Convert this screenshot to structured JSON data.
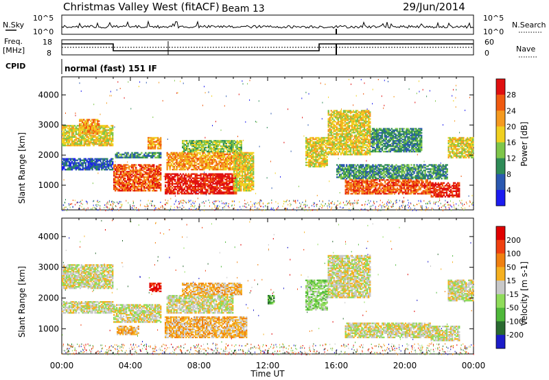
{
  "header": {
    "title": "Christmas Valley West (fitACF)",
    "beam": "Beam 13",
    "date": "29/Jun/2014"
  },
  "nsky_panel": {
    "left_label": "N.Sky",
    "right_label": "N.Search",
    "left_ticks": [
      "10^5",
      "10^0"
    ],
    "right_ticks": [
      "10^5",
      "10^0"
    ]
  },
  "freq_panel": {
    "left_label_1": "Freq.",
    "left_label_2": "[MHz]",
    "right_label": "Nave",
    "left_ticks": [
      "18",
      "8"
    ],
    "right_ticks": [
      "60",
      "0"
    ]
  },
  "cpid": {
    "label": "CPID",
    "value": "normal (fast) 151 IF"
  },
  "chart_data": [
    {
      "type": "heatmap",
      "quantity": "Power",
      "ylabel": "Slant Range [km]",
      "xlabel": "Time UT",
      "y_ticks": [
        1000,
        2000,
        3000,
        4000
      ],
      "ylim": [
        180,
        4600
      ],
      "x_ticks": [
        "00:00",
        "04:00",
        "08:00",
        "12:00",
        "16:00",
        "20:00",
        "00:00"
      ],
      "xlim_hours": [
        0,
        24
      ],
      "colorbar": {
        "label": "Power [dB]",
        "ticks": [
          "4",
          "8",
          "12",
          "16",
          "20",
          "24",
          "28"
        ],
        "colors": [
          "#1c1cf0",
          "#2a58b0",
          "#2e8b57",
          "#7fc64a",
          "#f0d020",
          "#f59a20",
          "#f05a10",
          "#e01010"
        ]
      },
      "bands": [
        {
          "t0": 0.0,
          "t1": 3.0,
          "r0": 2300,
          "r1": 3000,
          "level": 4
        },
        {
          "t0": 1.0,
          "t1": 2.2,
          "r0": 2700,
          "r1": 3200,
          "level": 5
        },
        {
          "t0": 0.0,
          "t1": 3.0,
          "r0": 1500,
          "r1": 1900,
          "level": 1
        },
        {
          "t0": 3.0,
          "t1": 5.8,
          "r0": 800,
          "r1": 1700,
          "level": 6
        },
        {
          "t0": 3.1,
          "t1": 5.8,
          "r0": 1900,
          "r1": 2100,
          "level": 2
        },
        {
          "t0": 5.0,
          "t1": 5.8,
          "r0": 2200,
          "r1": 2600,
          "level": 5
        },
        {
          "t0": 6.0,
          "t1": 10.2,
          "r0": 700,
          "r1": 1400,
          "level": 7
        },
        {
          "t0": 6.1,
          "t1": 10.8,
          "r0": 1500,
          "r1": 2100,
          "level": 5
        },
        {
          "t0": 7.0,
          "t1": 10.5,
          "r0": 2100,
          "r1": 2500,
          "level": 3
        },
        {
          "t0": 10.0,
          "t1": 11.2,
          "r0": 800,
          "r1": 2100,
          "level": 4
        },
        {
          "t0": 14.2,
          "t1": 15.5,
          "r0": 1600,
          "r1": 2600,
          "level": 4
        },
        {
          "t0": 15.5,
          "t1": 18.0,
          "r0": 2000,
          "r1": 3500,
          "level": 4
        },
        {
          "t0": 16.0,
          "t1": 22.5,
          "r0": 1200,
          "r1": 1700,
          "level": 2
        },
        {
          "t0": 16.5,
          "t1": 21.5,
          "r0": 700,
          "r1": 1200,
          "level": 6
        },
        {
          "t0": 21.5,
          "t1": 23.2,
          "r0": 600,
          "r1": 1100,
          "level": 7
        },
        {
          "t0": 22.5,
          "t1": 24.0,
          "r0": 1900,
          "r1": 2600,
          "level": 4
        },
        {
          "t0": 18.0,
          "t1": 21.0,
          "r0": 2100,
          "r1": 2900,
          "level": 2
        }
      ]
    },
    {
      "type": "heatmap",
      "quantity": "Velocity",
      "ylabel": "Slant Range [km]",
      "xlabel": "Time UT",
      "y_ticks": [
        1000,
        2000,
        3000,
        4000
      ],
      "ylim": [
        180,
        4600
      ],
      "x_ticks": [
        "00:00",
        "04:00",
        "08:00",
        "12:00",
        "16:00",
        "20:00",
        "00:00"
      ],
      "xlim_hours": [
        0,
        24
      ],
      "colorbar": {
        "label": "Velocity [m s-1]",
        "ticks": [
          "200",
          "100",
          "50",
          "15",
          "-15",
          "-50",
          "-100",
          "-200"
        ],
        "colors": [
          "#1c1cc8",
          "#2a6a30",
          "#4fb83a",
          "#8fdc5a",
          "#c8c8c8",
          "#f5b020",
          "#f08010",
          "#f04010",
          "#e00000"
        ]
      },
      "bands": [
        {
          "t0": 0.0,
          "t1": 3.0,
          "r0": 2300,
          "r1": 3100,
          "level": 4
        },
        {
          "t0": 0.0,
          "t1": 3.0,
          "r0": 1500,
          "r1": 1900,
          "level": 4
        },
        {
          "t0": 3.0,
          "t1": 5.8,
          "r0": 1200,
          "r1": 1800,
          "level": 4
        },
        {
          "t0": 3.2,
          "t1": 4.5,
          "r0": 800,
          "r1": 1100,
          "level": 5
        },
        {
          "t0": 5.1,
          "t1": 5.8,
          "r0": 2200,
          "r1": 2500,
          "level": 8
        },
        {
          "t0": 6.0,
          "t1": 10.8,
          "r0": 700,
          "r1": 1400,
          "level": 5
        },
        {
          "t0": 6.1,
          "t1": 10.0,
          "r0": 1500,
          "r1": 2100,
          "level": 4
        },
        {
          "t0": 7.0,
          "t1": 10.5,
          "r0": 2100,
          "r1": 2500,
          "level": 5
        },
        {
          "t0": 12.0,
          "t1": 12.4,
          "r0": 1800,
          "r1": 2100,
          "level": 2
        },
        {
          "t0": 14.2,
          "t1": 15.5,
          "r0": 1600,
          "r1": 2600,
          "level": 3
        },
        {
          "t0": 15.5,
          "t1": 18.0,
          "r0": 2000,
          "r1": 3400,
          "level": 4
        },
        {
          "t0": 16.5,
          "t1": 21.5,
          "r0": 700,
          "r1": 1200,
          "level": 4
        },
        {
          "t0": 21.5,
          "t1": 23.2,
          "r0": 600,
          "r1": 1100,
          "level": 4
        },
        {
          "t0": 22.5,
          "t1": 24.0,
          "r0": 1900,
          "r1": 2600,
          "level": 4
        }
      ]
    }
  ]
}
